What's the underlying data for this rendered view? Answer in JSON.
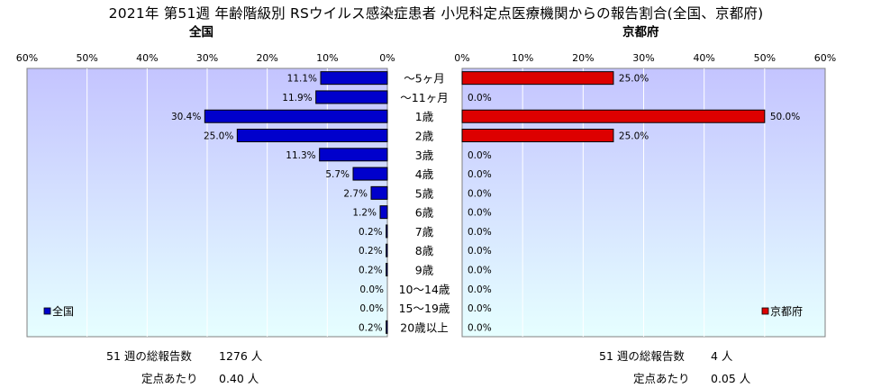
{
  "title": "2021年 第51週 年齢階級別 RSウイルス感染症患者 小児科定点医療機関からの報告割合(全国、京都府)",
  "categories": [
    "～5ヶ月",
    "～11ヶ月",
    "1歳",
    "2歳",
    "3歳",
    "4歳",
    "5歳",
    "6歳",
    "7歳",
    "8歳",
    "9歳",
    "10～14歳",
    "15～19歳",
    "20歳以上"
  ],
  "axis_ticks": [
    "0%",
    "10%",
    "20%",
    "30%",
    "40%",
    "50%",
    "60%"
  ],
  "colors": {
    "national_bar": "#0000cc",
    "kyoto_bar": "#dd0000",
    "plot_bg_top": "#c4c4ff",
    "plot_bg_bottom": "#e6ffff",
    "gridline": "#ffffff"
  },
  "chart_data": [
    {
      "type": "bar",
      "orientation": "horizontal",
      "title": "全国",
      "legend": "全国",
      "legend_position": "bottom-left",
      "xlim": [
        0,
        60
      ],
      "direction": "right-to-left",
      "categories": [
        "～5ヶ月",
        "～11ヶ月",
        "1歳",
        "2歳",
        "3歳",
        "4歳",
        "5歳",
        "6歳",
        "7歳",
        "8歳",
        "9歳",
        "10～14歳",
        "15～19歳",
        "20歳以上"
      ],
      "values": [
        11.1,
        11.9,
        30.4,
        25.0,
        11.3,
        5.7,
        2.7,
        1.2,
        0.2,
        0.2,
        0.2,
        0.0,
        0.0,
        0.2
      ],
      "unit": "%"
    },
    {
      "type": "bar",
      "orientation": "horizontal",
      "title": "京都府",
      "legend": "京都府",
      "legend_position": "bottom-right",
      "xlim": [
        0,
        60
      ],
      "direction": "left-to-right",
      "categories": [
        "～5ヶ月",
        "～11ヶ月",
        "1歳",
        "2歳",
        "3歳",
        "4歳",
        "5歳",
        "6歳",
        "7歳",
        "8歳",
        "9歳",
        "10～14歳",
        "15～19歳",
        "20歳以上"
      ],
      "values": [
        25.0,
        0.0,
        50.0,
        25.0,
        0.0,
        0.0,
        0.0,
        0.0,
        0.0,
        0.0,
        0.0,
        0.0,
        0.0,
        0.0
      ],
      "unit": "%"
    }
  ],
  "footer": {
    "national": {
      "total_label": "51 週の総報告数",
      "total_value": "1276 人",
      "per_label": "定点あたり",
      "per_value": "0.40 人"
    },
    "kyoto": {
      "total_label": "51 週の総報告数",
      "total_value": "4 人",
      "per_label": "定点あたり",
      "per_value": "0.05 人"
    }
  }
}
